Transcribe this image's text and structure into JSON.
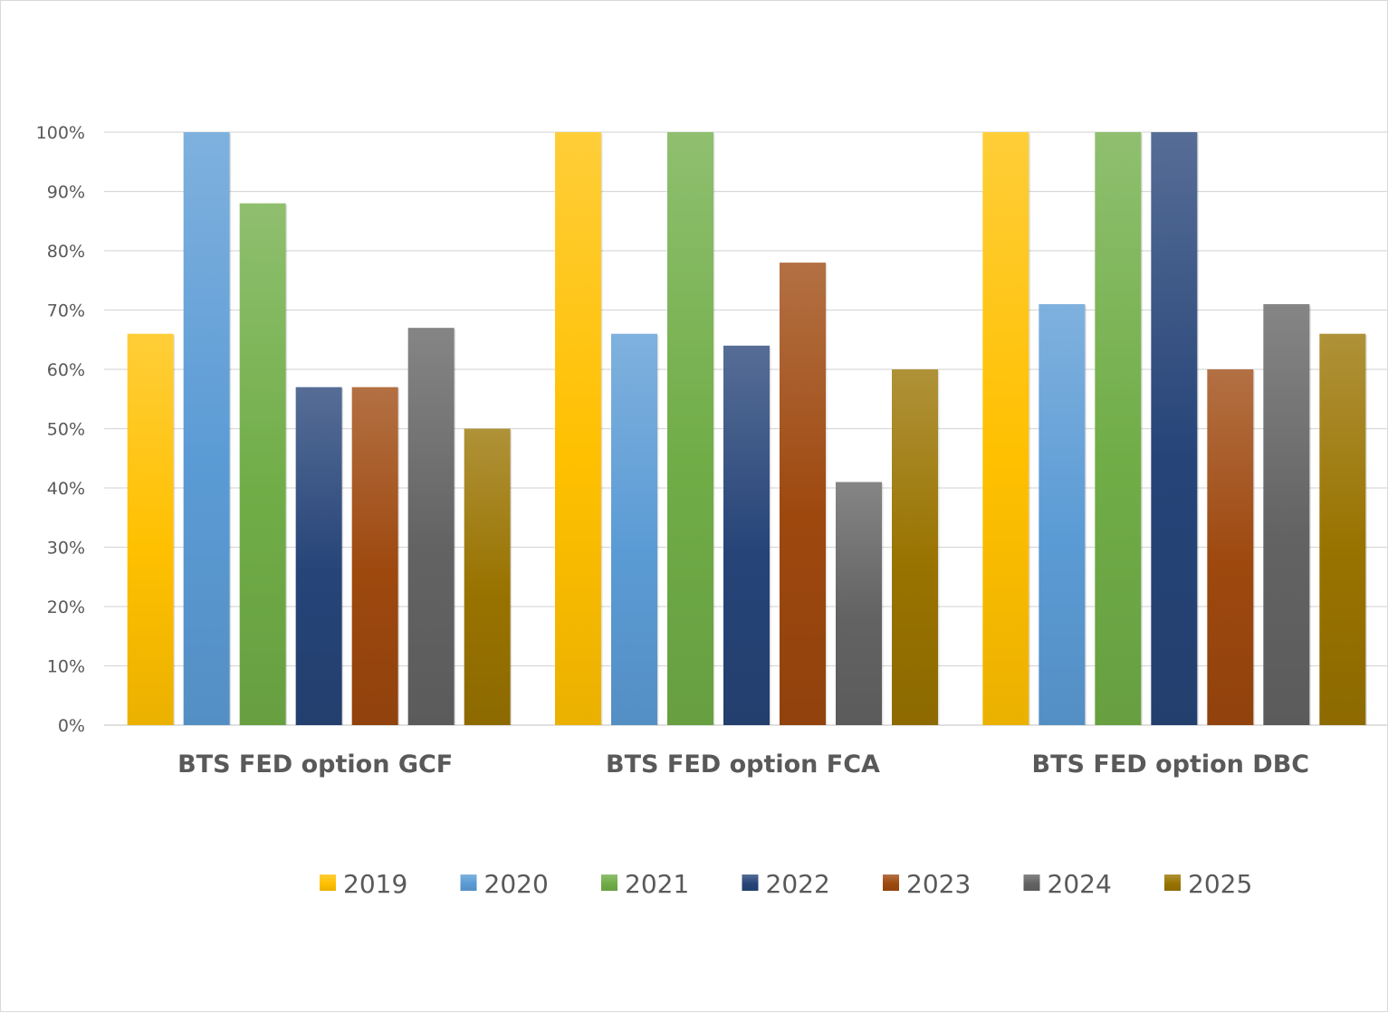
{
  "chart_data": {
    "type": "bar",
    "title": "",
    "xlabel": "",
    "ylabel": "",
    "ylim": [
      0,
      100
    ],
    "yticks": [
      "0%",
      "10%",
      "20%",
      "30%",
      "40%",
      "50%",
      "60%",
      "70%",
      "80%",
      "90%",
      "100%"
    ],
    "grid": true,
    "legend_position": "bottom",
    "categories": [
      "BTS FED option GCF",
      "BTS FED option FCA",
      "BTS FED option DBC"
    ],
    "series": [
      {
        "name": "2019",
        "color": "#FFC000",
        "values": [
          66,
          100,
          100
        ]
      },
      {
        "name": "2020",
        "color": "#5B9BD5",
        "values": [
          100,
          66,
          71
        ]
      },
      {
        "name": "2021",
        "color": "#70AD47",
        "values": [
          88,
          100,
          100
        ]
      },
      {
        "name": "2022",
        "color": "#264478",
        "values": [
          57,
          64,
          100
        ]
      },
      {
        "name": "2023",
        "color": "#9E480E",
        "values": [
          57,
          78,
          60
        ]
      },
      {
        "name": "2024",
        "color": "#636363",
        "values": [
          67,
          41,
          71
        ]
      },
      {
        "name": "2025",
        "color": "#997300",
        "values": [
          50,
          60,
          66
        ]
      }
    ]
  }
}
